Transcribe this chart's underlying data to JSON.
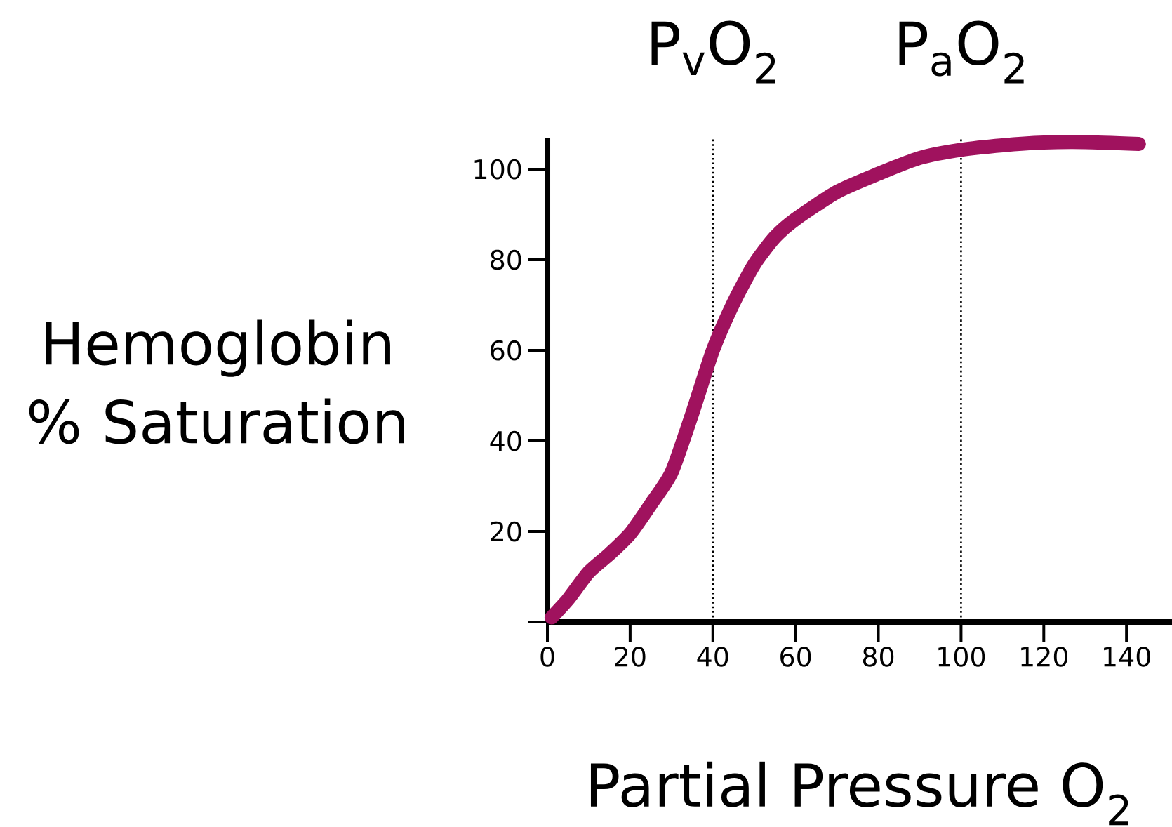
{
  "chart_data": {
    "type": "line",
    "xlabel": "Partial Pressure O$_{2}$",
    "ylabel": "Hemoglobin % Saturation",
    "series": [
      {
        "color": "#a0125e",
        "x": [
          1,
          5,
          10,
          15,
          20,
          25,
          30,
          35,
          40,
          45,
          50,
          55,
          60,
          70,
          80,
          90,
          100,
          110,
          120,
          130,
          143
        ],
        "values": [
          1,
          5,
          11,
          15,
          19.5,
          26,
          33,
          46,
          60,
          70.5,
          79,
          85,
          89,
          95,
          99,
          102.5,
          104.3,
          105.3,
          105.9,
          106,
          105.6
        ]
      }
    ],
    "xlim": [
      0,
      151
    ],
    "ylim": [
      0,
      107
    ],
    "xticks": [
      0,
      20,
      40,
      60,
      80,
      100,
      120,
      140
    ],
    "yticks": [
      {
        "value": 0,
        "label": null
      },
      20,
      40,
      60,
      80,
      100
    ],
    "ref_lines": [
      {
        "axis": "x",
        "value": 40,
        "label": "P$_{v}$O$_{2}$",
        "line_style": "dotted"
      },
      {
        "axis": "x",
        "value": 100,
        "label": "P$_{a}$O$_{2}$",
        "line_style": "dotted"
      }
    ],
    "grid": false,
    "marker": "none",
    "line_style": "solid"
  }
}
